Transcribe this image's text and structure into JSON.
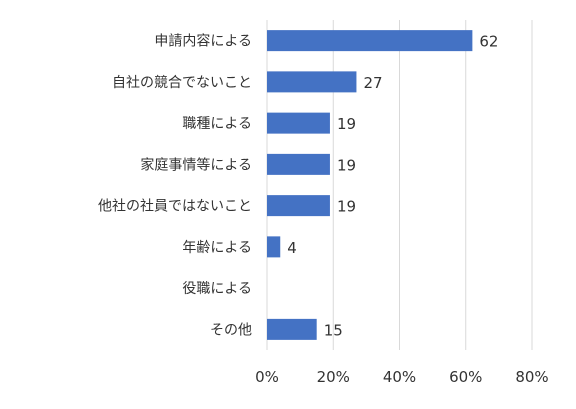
{
  "chart_data": {
    "type": "bar",
    "orientation": "horizontal",
    "categories": [
      "申請内容による",
      "自社の競合でないこと",
      "職種による",
      "家庭事情等による",
      "他社の社員ではないこと",
      "年齢による",
      "役職による",
      "その他"
    ],
    "values": [
      62,
      27,
      19,
      19,
      19,
      4,
      null,
      15
    ],
    "value_labels": [
      "62",
      "27",
      "19",
      "19",
      "19",
      "4",
      "",
      "15"
    ],
    "xlim": [
      0,
      80
    ],
    "xticks": [
      0,
      20,
      40,
      60,
      80
    ],
    "xtick_labels": [
      "0%",
      "20%",
      "40%",
      "60%",
      "80%"
    ],
    "grid": true,
    "bar_color": "#4472C4",
    "grid_color": "#D9D9D9"
  }
}
